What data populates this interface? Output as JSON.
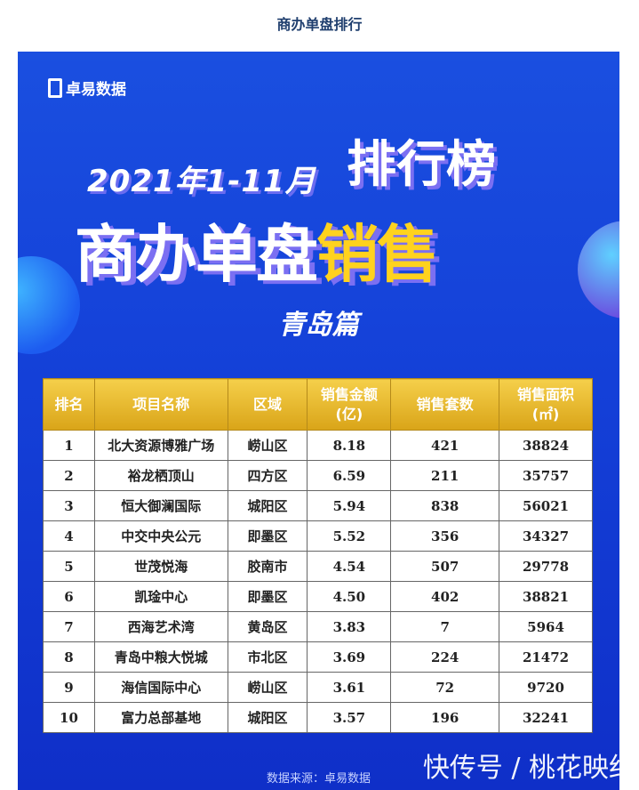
{
  "heading": "商办单盘排行",
  "banner": {
    "logo": "卓易数据",
    "period": "2021年1-11月",
    "ranking": "排行榜",
    "title_white": "商办单盘",
    "title_yellow": "销售",
    "city": "青岛篇",
    "accent_yellow": "#ffd21e",
    "background": "#1440d8"
  },
  "table": {
    "headers": [
      "排名",
      "项目名称",
      "区域",
      "销售金额\n(亿)",
      "销售套数",
      "销售面积\n(㎡)"
    ],
    "rows": [
      [
        "1",
        "北大资源博雅广场",
        "崂山区",
        "8.18",
        "421",
        "38824"
      ],
      [
        "2",
        "裕龙栖顶山",
        "四方区",
        "6.59",
        "211",
        "35757"
      ],
      [
        "3",
        "恒大御澜国际",
        "城阳区",
        "5.94",
        "838",
        "56021"
      ],
      [
        "4",
        "中交中央公元",
        "即墨区",
        "5.52",
        "356",
        "34327"
      ],
      [
        "5",
        "世茂悦海",
        "胶南市",
        "4.54",
        "507",
        "29778"
      ],
      [
        "6",
        "凯琻中心",
        "即墨区",
        "4.50",
        "402",
        "38821"
      ],
      [
        "7",
        "西海艺术湾",
        "黄岛区",
        "3.83",
        "7",
        "5964"
      ],
      [
        "8",
        "青岛中粮大悦城",
        "市北区",
        "3.69",
        "224",
        "21472"
      ],
      [
        "9",
        "海信国际中心",
        "崂山区",
        "3.61",
        "72",
        "9720"
      ],
      [
        "10",
        "富力总部基地",
        "城阳区",
        "3.57",
        "196",
        "32241"
      ]
    ]
  },
  "source": "数据来源：卓易数据",
  "watermark": "快传号 / 桃花映红"
}
